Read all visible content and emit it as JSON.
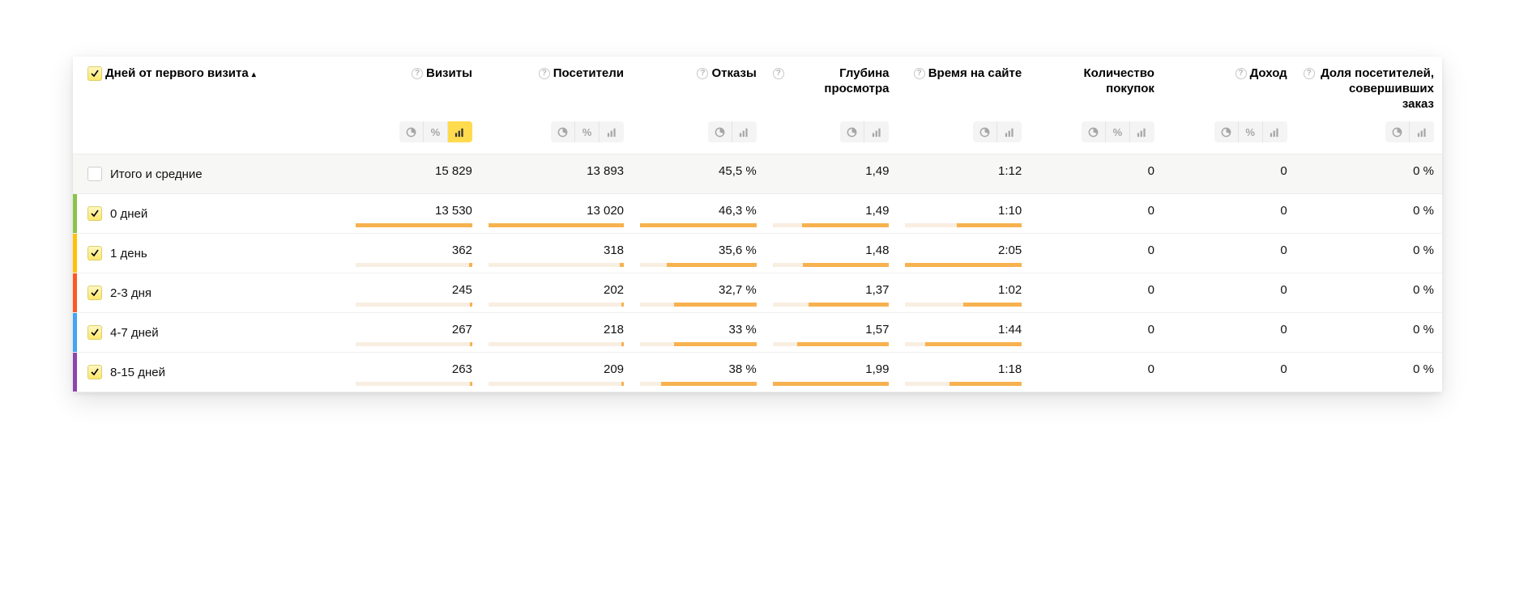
{
  "colors": {
    "bar_fill": "#f7b24f",
    "bar_track": "#f8eee1",
    "row_strips": [
      "#8bc34a",
      "#ffc107",
      "#ff5722",
      "#42a5f5",
      "#8e44ad"
    ],
    "toolbar_active_bg": "#ffdb4d",
    "toolbar_bg": "#f4f4f4",
    "totals_bg": "#f7f7f5"
  },
  "dimension": {
    "label": "Дней от первого визита",
    "sort_indicator": "▴"
  },
  "metrics": [
    {
      "key": "visits",
      "label": "Визиты",
      "help": true,
      "toolbar": [
        "pie",
        "pct",
        "bars"
      ],
      "active": "bars",
      "has_bar": true
    },
    {
      "key": "visitors",
      "label": "Посетители",
      "help": true,
      "toolbar": [
        "pie",
        "pct",
        "bars"
      ],
      "active": null,
      "has_bar": true
    },
    {
      "key": "bounce",
      "label": "Отказы",
      "help": true,
      "toolbar": [
        "pie",
        "bars"
      ],
      "active": null,
      "has_bar": true
    },
    {
      "key": "depth",
      "label": "Глубина просмотра",
      "help": true,
      "toolbar": [
        "pie",
        "bars"
      ],
      "active": null,
      "has_bar": true
    },
    {
      "key": "time",
      "label": "Время на сайте",
      "help": true,
      "toolbar": [
        "pie",
        "bars"
      ],
      "active": null,
      "has_bar": true
    },
    {
      "key": "orders",
      "label": "Количество покупок",
      "help": false,
      "toolbar": [
        "pie",
        "pct",
        "bars"
      ],
      "active": null,
      "has_bar": false
    },
    {
      "key": "revenue",
      "label": "Доход",
      "help": true,
      "toolbar": [
        "pie",
        "pct",
        "bars"
      ],
      "active": null,
      "has_bar": false
    },
    {
      "key": "conv",
      "label": "Доля посетителей, совершивших заказ",
      "help": true,
      "toolbar": [
        "pie",
        "bars"
      ],
      "active": null,
      "has_bar": false
    }
  ],
  "totals": {
    "label": "Итого и средние",
    "values": {
      "visits": {
        "text": "15 829"
      },
      "visitors": {
        "text": "13 893"
      },
      "bounce": {
        "text": "45,5 %"
      },
      "depth": {
        "text": "1,49"
      },
      "time": {
        "text": "1:12"
      },
      "orders": {
        "text": "0"
      },
      "revenue": {
        "text": "0"
      },
      "conv": {
        "text": "0 %"
      }
    }
  },
  "rows": [
    {
      "label": "0 дней",
      "values": {
        "visits": {
          "text": "13 530",
          "bar": 100
        },
        "visitors": {
          "text": "13 020",
          "bar": 100
        },
        "bounce": {
          "text": "46,3 %",
          "bar": 100
        },
        "depth": {
          "text": "1,49",
          "bar": 75
        },
        "time": {
          "text": "1:10",
          "bar": 56
        },
        "orders": {
          "text": "0"
        },
        "revenue": {
          "text": "0"
        },
        "conv": {
          "text": "0 %"
        }
      }
    },
    {
      "label": "1 день",
      "values": {
        "visits": {
          "text": "362",
          "bar": 3
        },
        "visitors": {
          "text": "318",
          "bar": 3
        },
        "bounce": {
          "text": "35,6 %",
          "bar": 77
        },
        "depth": {
          "text": "1,48",
          "bar": 74
        },
        "time": {
          "text": "2:05",
          "bar": 100
        },
        "orders": {
          "text": "0"
        },
        "revenue": {
          "text": "0"
        },
        "conv": {
          "text": "0 %"
        }
      }
    },
    {
      "label": "2-3 дня",
      "values": {
        "visits": {
          "text": "245",
          "bar": 2
        },
        "visitors": {
          "text": "202",
          "bar": 2
        },
        "bounce": {
          "text": "32,7 %",
          "bar": 71
        },
        "depth": {
          "text": "1,37",
          "bar": 69
        },
        "time": {
          "text": "1:02",
          "bar": 50
        },
        "orders": {
          "text": "0"
        },
        "revenue": {
          "text": "0"
        },
        "conv": {
          "text": "0 %"
        }
      }
    },
    {
      "label": "4-7 дней",
      "values": {
        "visits": {
          "text": "267",
          "bar": 2
        },
        "visitors": {
          "text": "218",
          "bar": 2
        },
        "bounce": {
          "text": "33 %",
          "bar": 71
        },
        "depth": {
          "text": "1,57",
          "bar": 79
        },
        "time": {
          "text": "1:44",
          "bar": 83
        },
        "orders": {
          "text": "0"
        },
        "revenue": {
          "text": "0"
        },
        "conv": {
          "text": "0 %"
        }
      }
    },
    {
      "label": "8-15 дней",
      "values": {
        "visits": {
          "text": "263",
          "bar": 2
        },
        "visitors": {
          "text": "209",
          "bar": 2
        },
        "bounce": {
          "text": "38 %",
          "bar": 82
        },
        "depth": {
          "text": "1,99",
          "bar": 100
        },
        "time": {
          "text": "1:18",
          "bar": 62
        },
        "orders": {
          "text": "0"
        },
        "revenue": {
          "text": "0"
        },
        "conv": {
          "text": "0 %"
        }
      }
    }
  ],
  "bar_track_width_pct": 100
}
